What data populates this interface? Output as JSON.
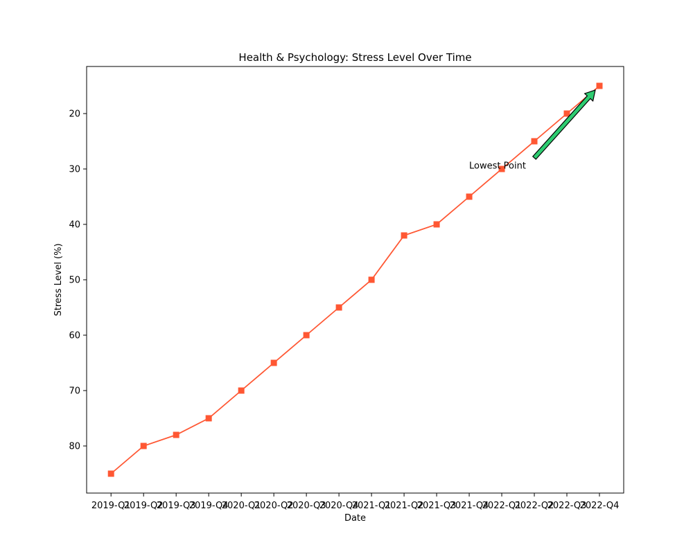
{
  "chart_data": {
    "type": "line",
    "title": "Health & Psychology: Stress Level Over Time",
    "xlabel": "Date",
    "ylabel": "Stress Level (%)",
    "categories": [
      "2019-Q1",
      "2019-Q2",
      "2019-Q3",
      "2019-Q4",
      "2020-Q1",
      "2020-Q2",
      "2020-Q3",
      "2020-Q4",
      "2021-Q1",
      "2021-Q2",
      "2021-Q3",
      "2021-Q4",
      "2022-Q1",
      "2022-Q2",
      "2022-Q3",
      "2022-Q4"
    ],
    "values": [
      85,
      80,
      78,
      75,
      70,
      65,
      60,
      55,
      50,
      42,
      40,
      35,
      30,
      25,
      20,
      15
    ],
    "y_inverted": true,
    "ylim": [
      88.5,
      11.5
    ],
    "yticks": [
      20,
      30,
      40,
      50,
      60,
      70,
      80
    ],
    "grid": false,
    "marker": "square",
    "line_color": "#ff5733",
    "annotation": {
      "text": "Lowest Point",
      "target_category": "2022-Q4",
      "target_value": 15,
      "arrow_color": "#2ecc71"
    }
  }
}
